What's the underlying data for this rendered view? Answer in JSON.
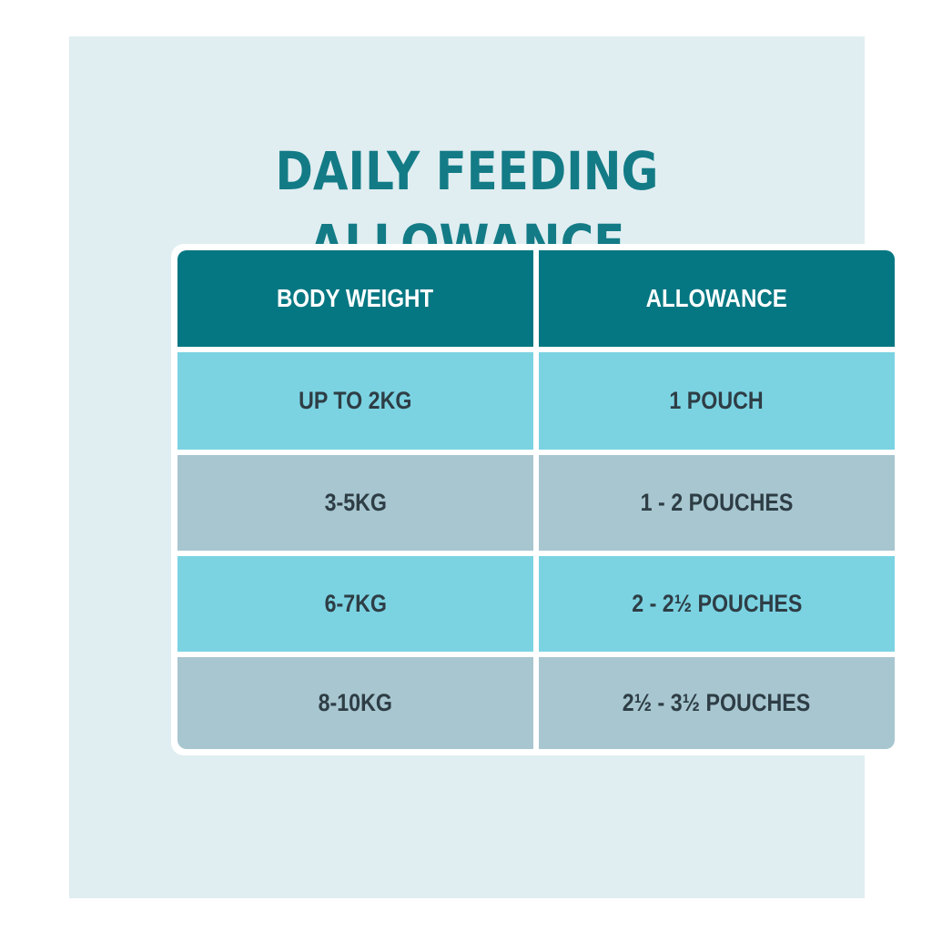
{
  "title": "DAILY FEEDING ALLOWANCE",
  "table": {
    "headers": [
      "BODY WEIGHT",
      "ALLOWANCE"
    ],
    "rows": [
      [
        "UP TO 2KG",
        "1 POUCH"
      ],
      [
        "3-5KG",
        "1 - 2 POUCHES"
      ],
      [
        "6-7KG",
        "2 - 2½ POUCHES"
      ],
      [
        "8-10KG",
        "2½ - 3½ POUCHES"
      ]
    ]
  },
  "colors": {
    "background_panel": "#e0eef1",
    "title": "#137b86",
    "header_fill": "#057782",
    "row_light_blue": "#7bd3e2",
    "row_grey_blue": "#a7c6d0",
    "cell_text": "#2e3d45"
  }
}
